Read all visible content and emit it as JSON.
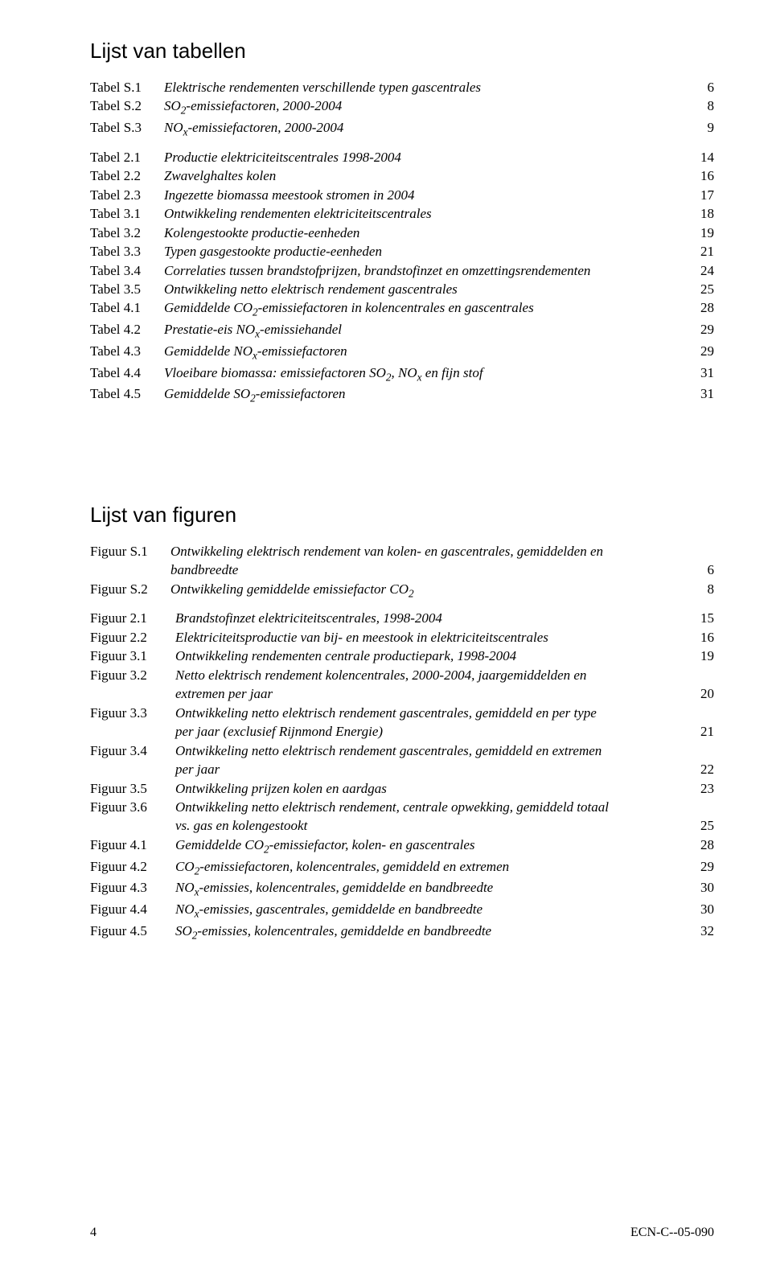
{
  "headings": {
    "tables": "Lijst van tabellen",
    "figures": "Lijst van figuren"
  },
  "tables_block1": [
    {
      "label": "Tabel S.1",
      "title_html": "Elektrische rendementen verschillende typen gascentrales",
      "page": "6"
    },
    {
      "label": "Tabel S.2",
      "title_html": "SO<span class='sub'>2</span>-emissiefactoren, 2000-2004",
      "page": "8"
    },
    {
      "label": "Tabel S.3",
      "title_html": "NO<span class='sub'>x</span>-emissiefactoren, 2000-2004",
      "page": "9"
    }
  ],
  "tables_block2": [
    {
      "label": "Tabel 2.1",
      "title_html": "Productie elektriciteitscentrales 1998-2004",
      "page": "14"
    },
    {
      "label": "Tabel 2.2",
      "title_html": "Zwavelghaltes kolen",
      "page": "16"
    },
    {
      "label": "Tabel 2.3",
      "title_html": "Ingezette biomassa meestook stromen in 2004",
      "page": "17"
    },
    {
      "label": "Tabel 3.1",
      "title_html": "Ontwikkeling rendementen elektriciteitscentrales",
      "page": "18"
    },
    {
      "label": "Tabel 3.2",
      "title_html": "Kolengestookte productie-eenheden",
      "page": "19"
    },
    {
      "label": "Tabel 3.3",
      "title_html": "Typen gasgestookte productie-eenheden",
      "page": "21"
    },
    {
      "label": "Tabel 3.4",
      "title_html": "Correlaties tussen brandstofprijzen, brandstofinzet en omzettingsrendementen",
      "page": "24"
    },
    {
      "label": "Tabel 3.5",
      "title_html": "Ontwikkeling netto elektrisch rendement gascentrales",
      "page": "25"
    },
    {
      "label": "Tabel 4.1",
      "title_html": "Gemiddelde CO<span class='sub'>2</span>-emissiefactoren in kolencentrales en gascentrales",
      "page": "28"
    },
    {
      "label": "Tabel 4.2",
      "title_html": "Prestatie-eis NO<span class='sub'>x</span>-emissiehandel",
      "page": "29"
    },
    {
      "label": "Tabel 4.3",
      "title_html": "Gemiddelde NO<span class='sub'>x</span>-emissiefactoren",
      "page": "29"
    },
    {
      "label": "Tabel 4.4",
      "title_html": "Vloeibare biomassa: emissiefactoren SO<span class='sub'>2</span>, NO<span class='sub'>x</span> en fijn stof",
      "page": "31"
    },
    {
      "label": "Tabel 4.5",
      "title_html": "Gemiddelde SO<span class='sub'>2</span>-emissiefactoren",
      "page": "31"
    }
  ],
  "figures_s": [
    {
      "label": "Figuur S.1",
      "title_html": "Ontwikkeling elektrisch rendement van kolen- en gascentrales, gemiddelden en",
      "cont_html": "bandbreedte",
      "page": "6",
      "labelw": "w-figures-s"
    },
    {
      "label": "Figuur S.2",
      "title_html": "Ontwikkeling gemiddelde emissiefactor CO<span class='sub'>2</span>",
      "page": "8",
      "labelw": "w-figures-s"
    }
  ],
  "figures": [
    {
      "label": "Figuur 2.1",
      "title_html": "Brandstofinzet elektriciteitscentrales, 1998-2004",
      "page": "15"
    },
    {
      "label": "Figuur 2.2",
      "title_html": "Elektriciteitsproductie van bij- en meestook in elektriciteitscentrales",
      "page": "16"
    },
    {
      "label": "Figuur 3.1",
      "title_html": "Ontwikkeling rendementen centrale productiepark, 1998-2004",
      "page": "19"
    },
    {
      "label": "Figuur 3.2",
      "title_html": "Netto elektrisch rendement kolencentrales, 2000-2004, jaargemiddelden en",
      "cont_html": "extremen per jaar",
      "page": "20"
    },
    {
      "label": "Figuur 3.3",
      "title_html": "Ontwikkeling netto elektrisch rendement gascentrales, gemiddeld en per type",
      "cont_html": "per jaar (exclusief Rijnmond Energie)",
      "page": "21"
    },
    {
      "label": "Figuur 3.4",
      "title_html": "Ontwikkeling netto elektrisch rendement gascentrales, gemiddeld en extremen",
      "cont_html": "per jaar",
      "page": "22"
    },
    {
      "label": "Figuur 3.5",
      "title_html": "Ontwikkeling prijzen kolen en aardgas",
      "page": "23"
    },
    {
      "label": "Figuur 3.6",
      "title_html": "Ontwikkeling netto elektrisch rendement, centrale opwekking, gemiddeld totaal",
      "cont_html": "vs. gas en kolengestookt",
      "page": "25"
    },
    {
      "label": "Figuur 4.1",
      "title_html": "Gemiddelde CO<span class='sub'>2</span>-emissiefactor, kolen- en gascentrales",
      "page": "28"
    },
    {
      "label": "Figuur 4.2",
      "title_html": "CO<span class='sub'>2</span>-emissiefactoren, kolencentrales, gemiddeld en extremen",
      "page": "29"
    },
    {
      "label": "Figuur 4.3",
      "title_html": "NO<span class='sub'>x</span>-emissies, kolencentrales, gemiddelde en bandbreedte",
      "page": "30"
    },
    {
      "label": "Figuur 4.4",
      "title_html": "NO<span class='sub'>x</span>-emissies, gascentrales, gemiddelde en bandbreedte",
      "page": "30"
    },
    {
      "label": "Figuur 4.5",
      "title_html": "SO<span class='sub'>2</span>-emissies, kolencentrales, gemiddelde en bandbreedte",
      "page": "32"
    }
  ],
  "footer": {
    "page_number": "4",
    "doc_id": "ECN-C--05-090"
  }
}
